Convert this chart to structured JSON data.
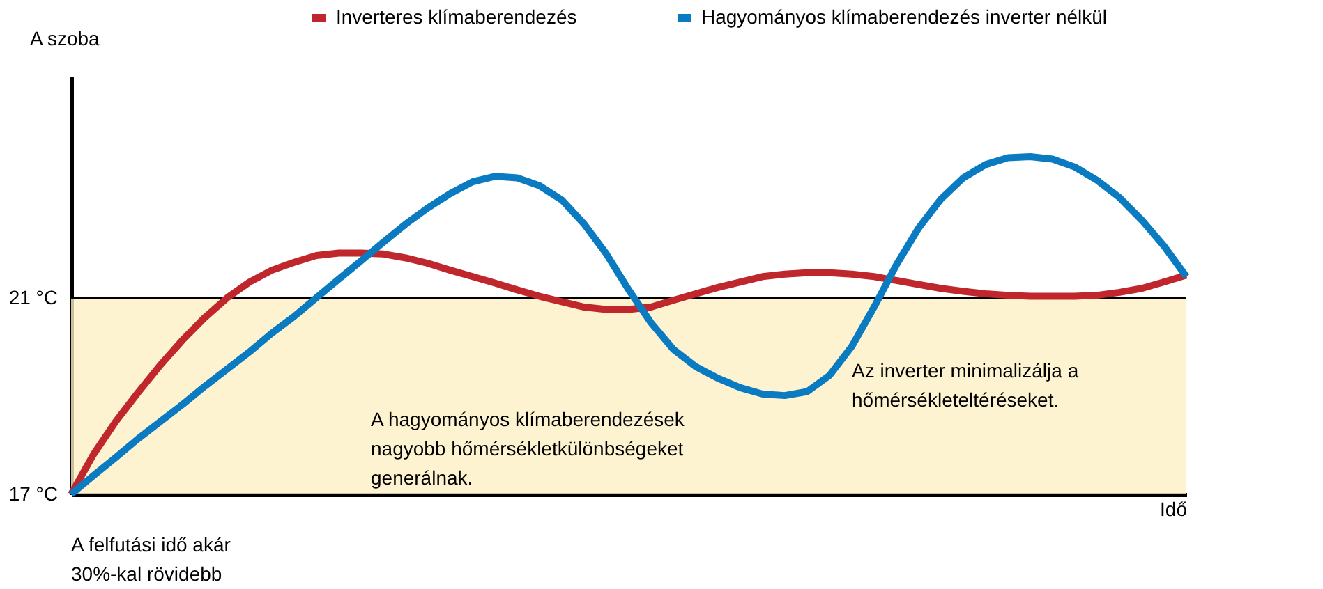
{
  "chart_data": {
    "type": "line",
    "ylabel": "A szoba",
    "xlabel": "Idő",
    "categories": [
      null,
      null,
      null,
      null,
      null,
      null,
      null,
      null,
      null,
      null,
      null,
      null,
      null,
      null,
      null,
      null,
      null,
      null,
      null,
      null,
      null,
      null,
      null,
      null,
      null,
      null,
      null,
      null,
      null,
      null,
      null,
      null,
      null,
      null,
      null,
      null,
      null,
      null,
      null,
      null,
      null,
      null,
      null,
      null,
      null,
      null,
      null,
      null,
      null,
      null,
      null
    ],
    "ylim": [
      17,
      25.5
    ],
    "yticks": [
      {
        "value": 17,
        "label": "17 °C"
      },
      {
        "value": 21,
        "label": "21 °C"
      }
    ],
    "tick_labels": "y",
    "legend": "top",
    "series": [
      {
        "name": "Inverteres klímaberendezés",
        "color": "#c0272d",
        "values": [
          17,
          17.81,
          18.48,
          19.07,
          19.63,
          20.14,
          20.6,
          21.0,
          21.32,
          21.56,
          21.72,
          21.86,
          21.91,
          21.91,
          21.89,
          21.81,
          21.7,
          21.56,
          21.43,
          21.3,
          21.16,
          21.03,
          20.92,
          20.81,
          20.76,
          20.76,
          20.81,
          20.95,
          21.08,
          21.21,
          21.32,
          21.43,
          21.48,
          21.51,
          21.51,
          21.48,
          21.43,
          21.35,
          21.27,
          21.19,
          21.13,
          21.08,
          21.05,
          21.03,
          21.03,
          21.03,
          21.05,
          21.11,
          21.19,
          21.32,
          21.46
        ]
      },
      {
        "name": "Hagyományos klímaberendezés inverter nélkül",
        "color": "#0a7bc1",
        "values": [
          17,
          17.38,
          17.75,
          18.13,
          18.48,
          18.83,
          19.2,
          19.55,
          19.9,
          20.28,
          20.62,
          21.0,
          21.38,
          21.75,
          22.13,
          22.5,
          22.83,
          23.12,
          23.36,
          23.47,
          23.44,
          23.28,
          22.99,
          22.5,
          21.89,
          21.16,
          20.49,
          19.95,
          19.6,
          19.36,
          19.17,
          19.04,
          19.01,
          19.09,
          19.42,
          20.01,
          20.81,
          21.67,
          22.42,
          23.01,
          23.44,
          23.71,
          23.85,
          23.87,
          23.82,
          23.66,
          23.39,
          23.04,
          22.58,
          22.05,
          21.43
        ]
      }
    ],
    "ref_lines": [
      {
        "axis": "y",
        "value": 21,
        "color": "#000000"
      }
    ],
    "bands": [
      {
        "axis": "y",
        "from": 17,
        "to": 21,
        "color": "#fdf0c4"
      }
    ],
    "annotations": [
      "A felfutási idő akár\n30%-kal rövidebb",
      "A hagyományos klímaberendezések\nnagyobb hőmérsékletkülönbségeket\ngenerálnak.",
      "Az inverter minimalizálja a\nhőmérsékleteltéréseket."
    ]
  }
}
